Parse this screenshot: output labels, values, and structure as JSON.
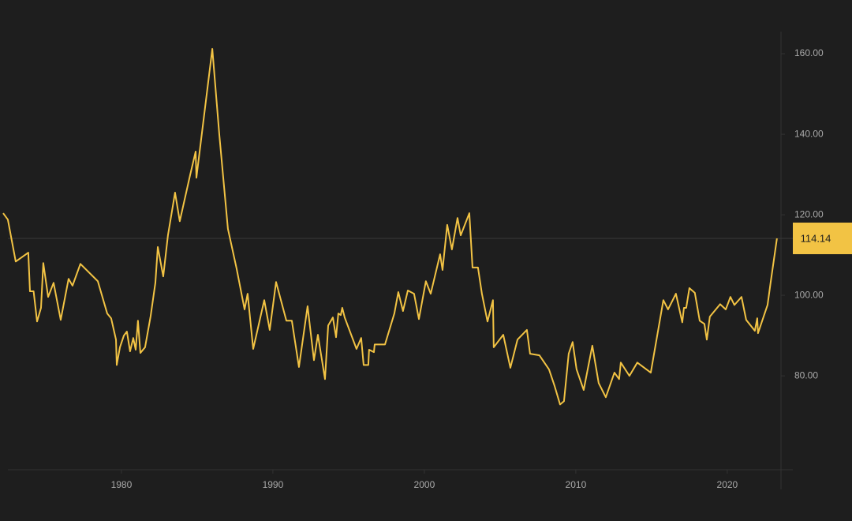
{
  "chart_data": {
    "type": "line",
    "color": "#f2c344",
    "x": [
      1972.19,
      1972.5,
      1973.02,
      1973.85,
      1973.96,
      1974.2,
      1974.43,
      1974.69,
      1974.84,
      1975.16,
      1975.52,
      1975.99,
      1976.51,
      1976.77,
      1977.29,
      1978.44,
      1979.06,
      1979.32,
      1979.64,
      1979.69,
      1979.9,
      1980.16,
      1980.36,
      1980.57,
      1980.78,
      1980.94,
      1981.09,
      1981.25,
      1981.56,
      1981.93,
      1982.24,
      1982.4,
      1982.76,
      1983.07,
      1983.54,
      1983.85,
      1984.53,
      1984.9,
      1984.95,
      1986.0,
      1986.46,
      1987.03,
      1987.6,
      1988.13,
      1988.33,
      1988.7,
      1989.43,
      1989.79,
      1990.21,
      1990.89,
      1991.25,
      1991.72,
      1992.29,
      1992.71,
      1992.97,
      1993.44,
      1993.65,
      1993.96,
      1994.17,
      1994.32,
      1994.48,
      1994.58,
      1994.74,
      1995.52,
      1995.83,
      1995.99,
      1996.3,
      1996.35,
      1996.67,
      1996.72,
      1997.4,
      1998.02,
      1998.28,
      1998.59,
      1998.91,
      1999.32,
      1999.64,
      2000.1,
      2000.42,
      2001.04,
      2001.2,
      2001.51,
      2001.82,
      2002.19,
      2002.4,
      2002.97,
      2003.18,
      2003.54,
      2003.8,
      2004.17,
      2004.53,
      2004.58,
      2005.21,
      2005.68,
      2006.15,
      2006.77,
      2006.98,
      2007.6,
      2008.23,
      2008.59,
      2008.96,
      2009.22,
      2009.53,
      2009.79,
      2010.05,
      2010.52,
      2011.09,
      2011.51,
      2011.98,
      2012.55,
      2012.86,
      2012.97,
      2013.54,
      2014.06,
      2014.95,
      2015.78,
      2016.09,
      2016.61,
      2017.03,
      2017.14,
      2017.29,
      2017.5,
      2017.86,
      2018.18,
      2018.49,
      2018.65,
      2018.85,
      2019.53,
      2019.9,
      2020.21,
      2020.47,
      2020.94,
      2021.25,
      2021.82,
      2021.98,
      2022.03,
      2022.66,
      2022.86,
      2023.28
    ],
    "values": [
      120.4,
      118.8,
      108.4,
      110.6,
      101.0,
      101.0,
      93.5,
      96.9,
      108.0,
      99.6,
      103.1,
      93.9,
      104.1,
      102.4,
      107.8,
      103.5,
      95.5,
      94.3,
      89.0,
      82.7,
      87.1,
      90.0,
      91.0,
      86.1,
      89.4,
      86.5,
      93.7,
      85.7,
      87.1,
      94.9,
      103.1,
      112.0,
      104.7,
      114.9,
      125.5,
      118.4,
      129.8,
      135.7,
      129.2,
      161.2,
      140.0,
      116.5,
      106.7,
      96.5,
      100.4,
      86.7,
      98.8,
      91.4,
      103.3,
      93.7,
      93.7,
      82.2,
      97.3,
      83.9,
      90.2,
      79.2,
      92.5,
      94.5,
      89.6,
      95.5,
      95.1,
      96.9,
      94.5,
      86.7,
      89.4,
      82.7,
      82.7,
      86.5,
      85.9,
      87.8,
      87.8,
      95.5,
      100.8,
      96.1,
      101.2,
      100.4,
      94.1,
      103.5,
      100.4,
      110.2,
      106.3,
      117.5,
      111.4,
      119.2,
      114.9,
      120.4,
      106.9,
      106.9,
      100.4,
      93.5,
      98.8,
      87.1,
      90.2,
      82.0,
      89.0,
      91.4,
      85.5,
      85.1,
      81.6,
      77.6,
      72.9,
      73.7,
      85.5,
      88.4,
      81.6,
      76.5,
      87.5,
      78.2,
      74.7,
      80.8,
      79.2,
      83.3,
      80.0,
      83.3,
      80.8,
      98.8,
      96.5,
      100.4,
      93.3,
      96.9,
      96.9,
      101.8,
      100.6,
      93.7,
      92.9,
      89.0,
      94.7,
      97.8,
      96.5,
      99.6,
      97.6,
      99.6,
      93.9,
      91.2,
      94.3,
      90.6,
      97.6,
      103.1,
      114.14
    ],
    "xlim": [
      1972.19,
      2023.6
    ],
    "ylim": [
      56.7,
      165.5
    ],
    "xticks": [
      1980,
      1990,
      2000,
      2010,
      2020
    ],
    "yticks": [
      {
        "value": 80,
        "label": "80.00"
      },
      {
        "value": 100,
        "label": "100.00"
      },
      {
        "value": 120,
        "label": "120.00"
      },
      {
        "value": 140,
        "label": "140.00"
      },
      {
        "value": 160,
        "label": "160.00"
      }
    ],
    "current": {
      "value": 114.14,
      "label": "114.14"
    }
  }
}
